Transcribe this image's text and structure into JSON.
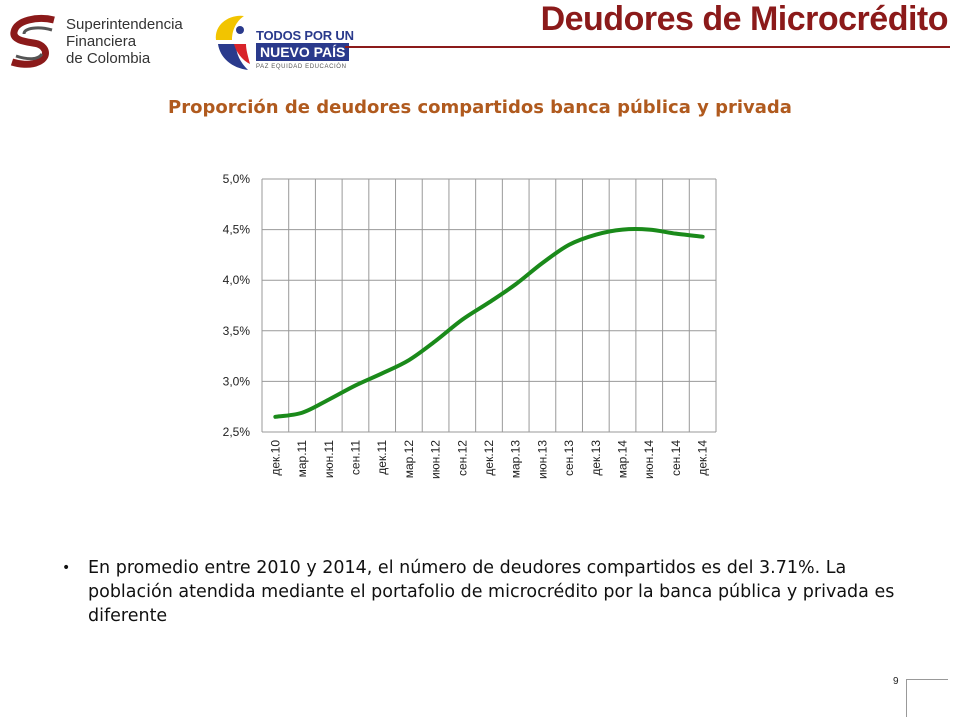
{
  "logos": {
    "sfc_lines": [
      "Superintendencia",
      "Financiera",
      "de Colombia"
    ],
    "gov_line1": "TODOS POR UN",
    "gov_line2": "NUEVO PAÍS",
    "gov_line3": "PAZ  EQUIDAD  EDUCACIÓN"
  },
  "slide_title": "Deudores de Microcrédito",
  "colors": {
    "title": "#8b1a1a",
    "chart_title": "#b05a1e",
    "series": "#1a8a1a",
    "grid": "#999999"
  },
  "chart_data": {
    "type": "line",
    "title": "Proporción de deudores compartidos banca pública y privada",
    "categories": [
      "дек.10",
      "мар.11",
      "июн.11",
      "сен.11",
      "дек.11",
      "мар.12",
      "июн.12",
      "сен.12",
      "дек.12",
      "мар.13",
      "июн.13",
      "сен.13",
      "дек.13",
      "мар.14",
      "июн.14",
      "сен.14",
      "дек.14"
    ],
    "series": [
      {
        "values": [
          2.65,
          2.69,
          2.82,
          2.96,
          3.08,
          3.21,
          3.4,
          3.61,
          3.78,
          3.96,
          4.17,
          4.35,
          4.45,
          4.5,
          4.5,
          4.46,
          4.43
        ]
      }
    ],
    "y_ticks": [
      "2,5%",
      "3,0%",
      "3,5%",
      "4,0%",
      "4,5%",
      "5,0%"
    ],
    "ylim": [
      2.5,
      5.0
    ],
    "grid": true,
    "legend": "none"
  },
  "bullet": {
    "symbol": "•",
    "text": "En promedio entre 2010 y 2014, el número de deudores compartidos es del 3.71%. La población atendida mediante el portafolio de microcrédito por la banca pública y privada es diferente"
  },
  "page_number": "9"
}
